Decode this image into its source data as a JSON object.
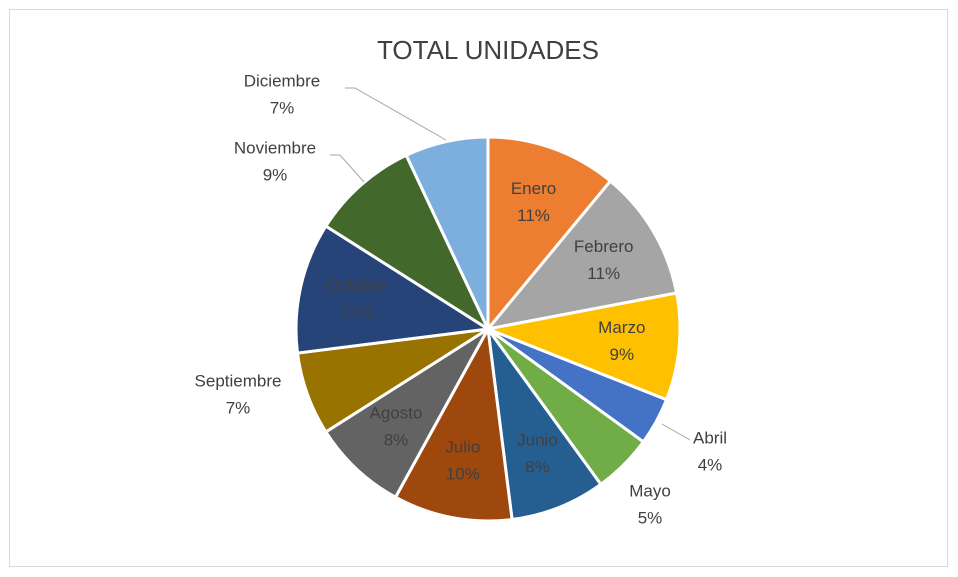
{
  "chart_data": {
    "type": "pie",
    "title": "TOTAL UNIDADES",
    "categories": [
      "Enero",
      "Febrero",
      "Marzo",
      "Abril",
      "Mayo",
      "Junio",
      "Julio",
      "Agosto",
      "Septiembre",
      "Octubre",
      "Noviembre",
      "Diciembre"
    ],
    "values": [
      11,
      11,
      9,
      4,
      5,
      8,
      10,
      8,
      7,
      11,
      9,
      7
    ],
    "value_labels": [
      "11%",
      "11%",
      "9%",
      "4%",
      "5%",
      "8%",
      "10%",
      "8%",
      "7%",
      "11%",
      "9%",
      "7%"
    ],
    "colors": [
      "#ED7D31",
      "#A5A5A5",
      "#FFC000",
      "#4472C4",
      "#70AD47",
      "#255E91",
      "#9E480E",
      "#636363",
      "#997300",
      "#264478",
      "#43682B",
      "#7CAFDD"
    ]
  }
}
